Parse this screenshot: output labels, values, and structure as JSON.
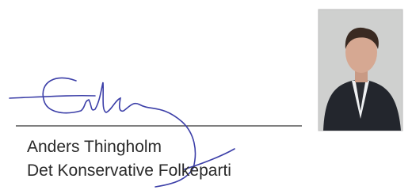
{
  "signatory": {
    "name": "Anders Thingholm",
    "party": "Det Konservative Folkeparti"
  }
}
